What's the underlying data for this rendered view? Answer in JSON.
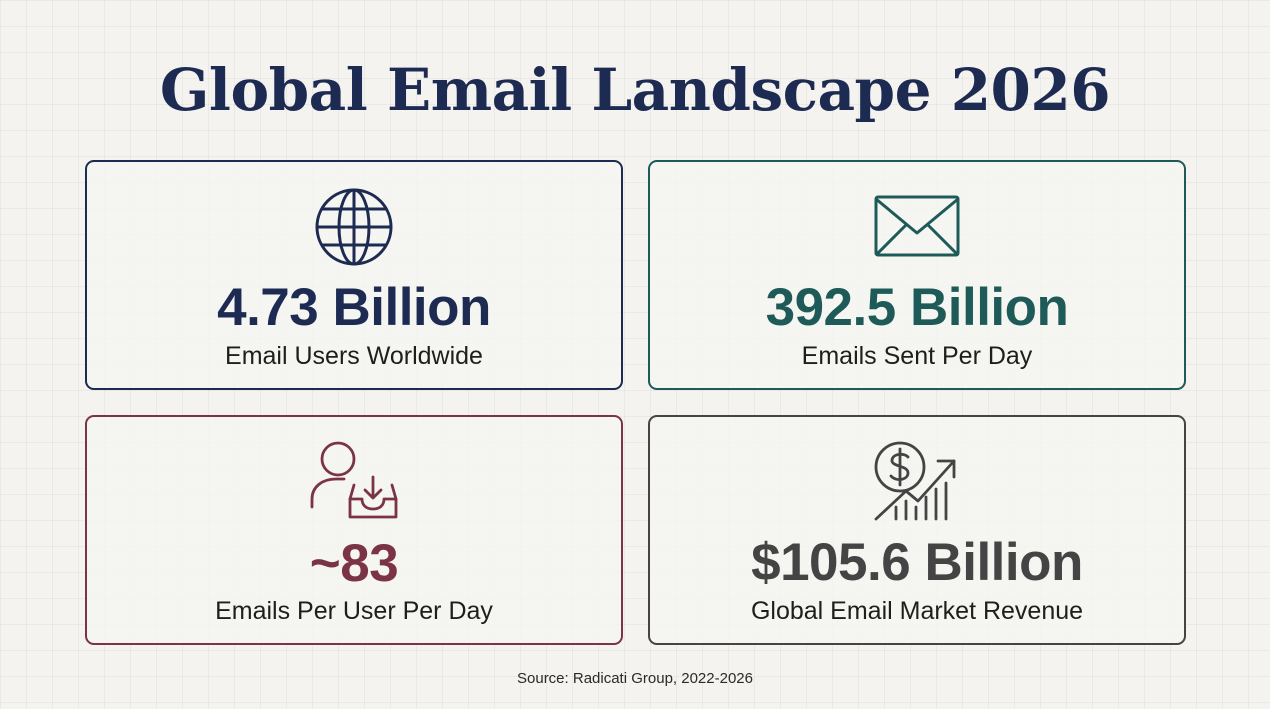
{
  "title": "Global Email Landscape 2026",
  "colors": {
    "navy": "#1d2b52",
    "teal": "#1e5a58",
    "maroon": "#7b3346",
    "charcoal": "#444444",
    "background": "#f4f3ef"
  },
  "cards": [
    {
      "icon": "globe-icon",
      "value": "4.73 Billion",
      "label": "Email Users Worldwide"
    },
    {
      "icon": "envelope-icon",
      "value": "392.5 Billion",
      "label": "Emails Sent Per Day"
    },
    {
      "icon": "user-inbox-icon",
      "value": "~83",
      "label": "Emails Per User Per Day"
    },
    {
      "icon": "revenue-growth-icon",
      "value": "$105.6 Billion",
      "label": "Global Email Market Revenue"
    }
  ],
  "source": "Source: Radicati Group, 2022-2026"
}
